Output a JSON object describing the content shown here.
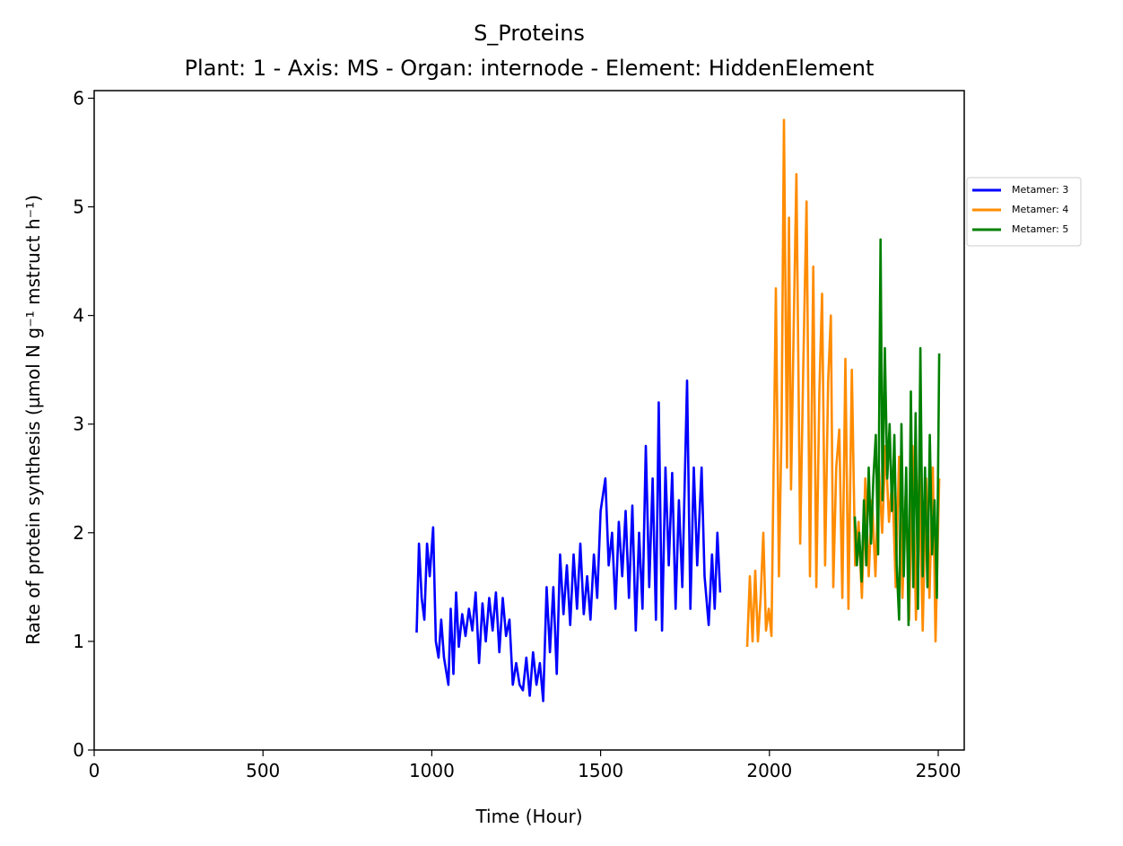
{
  "chart_data": {
    "type": "line",
    "title": "S_Proteins",
    "subtitle": "Plant: 1 - Axis: MS - Organ: internode - Element: HiddenElement",
    "x_label": "Time (Hour)",
    "y_label": "Rate of protein synthesis (µmol N g⁻¹ mstruct h⁻¹)",
    "xlim": [
      0,
      2577
    ],
    "ylim": [
      0,
      6.07
    ],
    "xticks": [
      0,
      500,
      1000,
      1500,
      2000,
      2500
    ],
    "yticks": [
      0,
      1,
      2,
      3,
      4,
      5,
      6
    ],
    "grid": false,
    "legend_position": "outside-right",
    "series": [
      {
        "name": "Metamer: 3",
        "color": "#0000ff",
        "x": [
          955,
          962,
          970,
          978,
          986,
          994,
          1004,
          1012,
          1020,
          1028,
          1036,
          1049,
          1056,
          1064,
          1072,
          1080,
          1090,
          1100,
          1110,
          1120,
          1130,
          1140,
          1150,
          1160,
          1170,
          1180,
          1190,
          1200,
          1210,
          1220,
          1230,
          1240,
          1250,
          1260,
          1270,
          1280,
          1290,
          1300,
          1310,
          1320,
          1330,
          1340,
          1350,
          1360,
          1370,
          1380,
          1390,
          1400,
          1410,
          1420,
          1430,
          1440,
          1450,
          1460,
          1470,
          1480,
          1490,
          1500,
          1514,
          1524,
          1534,
          1544,
          1554,
          1564,
          1574,
          1584,
          1594,
          1604,
          1614,
          1624,
          1634,
          1644,
          1654,
          1664,
          1672,
          1682,
          1692,
          1702,
          1712,
          1722,
          1732,
          1742,
          1756,
          1766,
          1776,
          1786,
          1799,
          1808,
          1820,
          1830,
          1838,
          1846,
          1854
        ],
        "values": [
          1.08,
          1.9,
          1.4,
          1.2,
          1.9,
          1.6,
          2.05,
          1.0,
          0.85,
          1.2,
          0.85,
          0.6,
          1.3,
          0.7,
          1.45,
          0.95,
          1.25,
          1.05,
          1.3,
          1.1,
          1.45,
          0.8,
          1.35,
          1.0,
          1.4,
          1.1,
          1.45,
          0.9,
          1.4,
          1.05,
          1.2,
          0.6,
          0.8,
          0.6,
          0.55,
          0.85,
          0.5,
          0.9,
          0.6,
          0.8,
          0.45,
          1.5,
          0.9,
          1.5,
          0.7,
          1.8,
          1.25,
          1.7,
          1.15,
          1.8,
          1.3,
          1.9,
          1.25,
          1.6,
          1.2,
          1.8,
          1.4,
          2.2,
          2.5,
          1.7,
          2.0,
          1.3,
          2.1,
          1.6,
          2.2,
          1.4,
          2.25,
          1.1,
          2.0,
          1.3,
          2.8,
          1.5,
          2.5,
          1.2,
          3.2,
          1.1,
          2.6,
          1.7,
          2.55,
          1.3,
          2.3,
          1.5,
          3.4,
          1.3,
          2.6,
          1.7,
          2.6,
          1.6,
          1.15,
          1.8,
          1.3,
          2.0,
          1.45
        ]
      },
      {
        "name": "Metamer: 4",
        "color": "#ff8c00",
        "x": [
          1934,
          1942,
          1950,
          1958,
          1966,
          1974,
          1982,
          1990,
          1998,
          2006,
          2019,
          2028,
          2036,
          2043,
          2052,
          2058,
          2064,
          2072,
          2080,
          2091,
          2100,
          2110,
          2120,
          2130,
          2139,
          2148,
          2156,
          2165,
          2174,
          2182,
          2189,
          2198,
          2207,
          2216,
          2225,
          2234,
          2244,
          2254,
          2264,
          2274,
          2284,
          2294,
          2304,
          2314,
          2324,
          2334,
          2344,
          2354,
          2364,
          2374,
          2384,
          2394,
          2404,
          2414,
          2424,
          2434,
          2444,
          2454,
          2464,
          2474,
          2484,
          2492,
          2503
        ],
        "values": [
          0.95,
          1.6,
          1.0,
          1.65,
          1.0,
          1.4,
          2.0,
          1.1,
          1.3,
          1.05,
          4.25,
          1.6,
          3.0,
          5.8,
          2.6,
          4.9,
          2.4,
          3.9,
          5.3,
          1.9,
          3.5,
          5.05,
          1.6,
          4.45,
          1.5,
          3.3,
          4.2,
          1.7,
          3.4,
          4.0,
          1.5,
          2.6,
          2.95,
          1.4,
          3.6,
          1.3,
          3.5,
          1.7,
          2.1,
          1.4,
          2.5,
          1.6,
          2.3,
          1.6,
          2.6,
          2.0,
          2.8,
          2.1,
          2.5,
          1.5,
          2.7,
          1.4,
          2.4,
          1.2,
          2.8,
          1.2,
          2.6,
          1.1,
          2.5,
          1.4,
          2.6,
          1.0,
          2.5
        ]
      },
      {
        "name": "Metamer: 5",
        "color": "#008000",
        "x": [
          2253,
          2259,
          2266,
          2273,
          2280,
          2287,
          2294,
          2301,
          2308,
          2315,
          2322,
          2329,
          2335,
          2342,
          2349,
          2356,
          2363,
          2370,
          2377,
          2384,
          2391,
          2398,
          2405,
          2412,
          2419,
          2426,
          2433,
          2440,
          2447,
          2454,
          2461,
          2468,
          2475,
          2482,
          2489,
          2496,
          2503
        ],
        "values": [
          2.15,
          1.7,
          2.0,
          1.55,
          2.3,
          1.7,
          2.6,
          1.9,
          2.5,
          2.9,
          1.8,
          4.7,
          2.3,
          3.7,
          2.5,
          3.0,
          2.2,
          2.9,
          1.7,
          1.2,
          3.0,
          1.6,
          2.6,
          1.15,
          3.3,
          1.5,
          3.1,
          1.3,
          3.7,
          1.6,
          2.6,
          1.5,
          2.9,
          1.8,
          2.3,
          1.4,
          3.65
        ]
      }
    ]
  }
}
